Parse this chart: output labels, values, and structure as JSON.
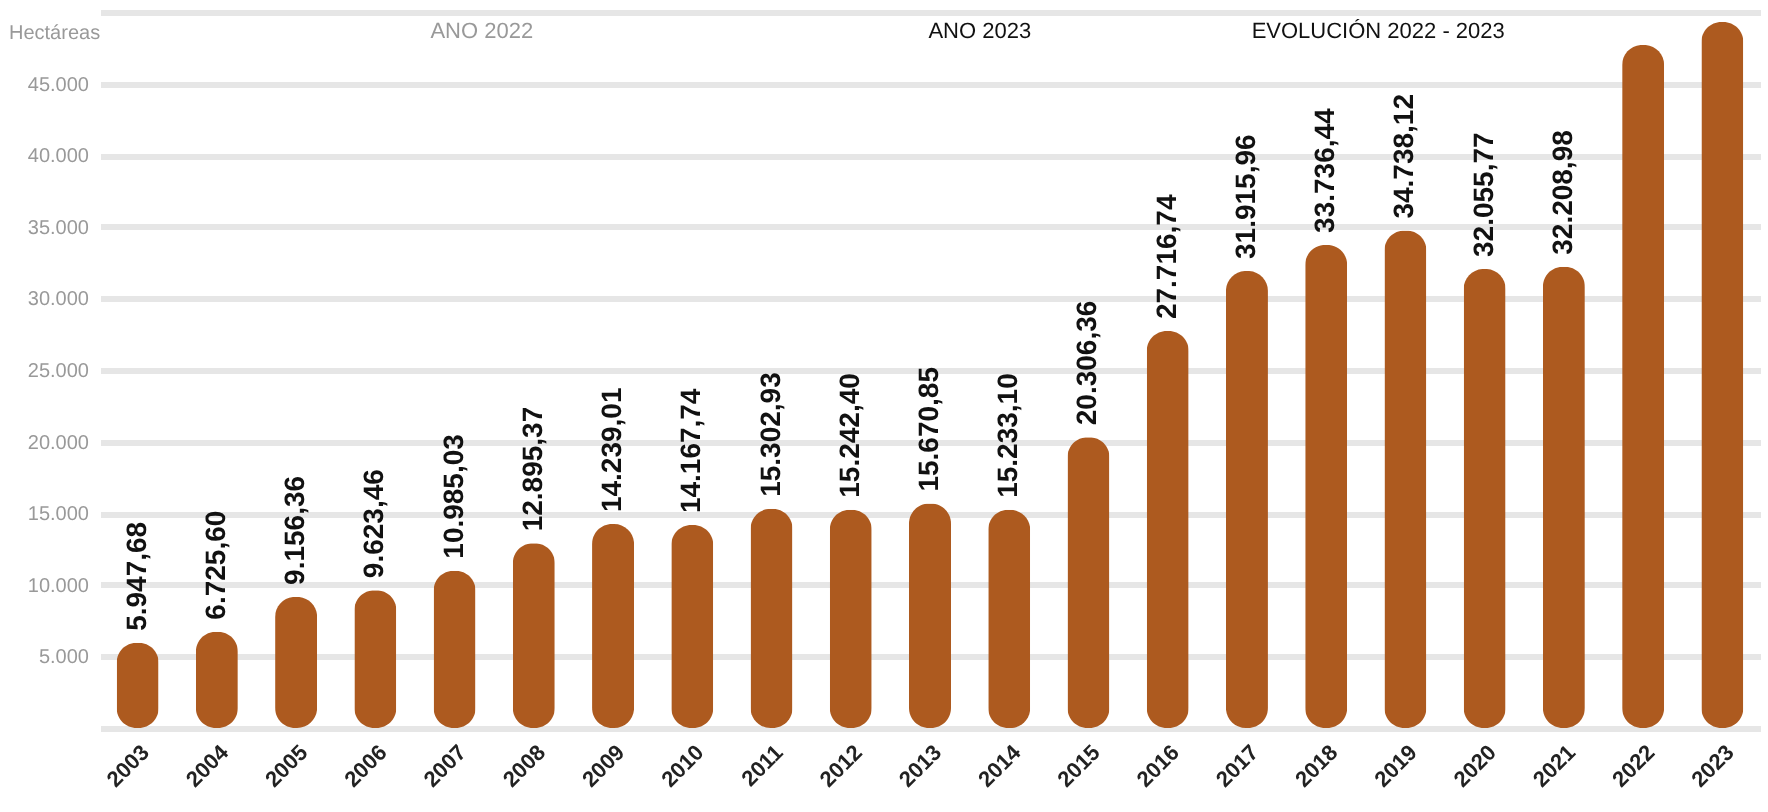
{
  "chart_data": {
    "type": "bar",
    "ylabel": "Hectáreas",
    "annotations": [
      "ANO 2022",
      "ANO 2023",
      "EVOLUCIÓN 2022 - 2023"
    ],
    "categories": [
      "2003",
      "2004",
      "2005",
      "2006",
      "2007",
      "2008",
      "2009",
      "2010",
      "2011",
      "2012",
      "2013",
      "2014",
      "2015",
      "2016",
      "2017",
      "2018",
      "2019",
      "2020",
      "2021",
      "2022",
      "2023"
    ],
    "values": [
      5947.68,
      6725.6,
      9156.36,
      9623.46,
      10985.03,
      12895.37,
      14239.01,
      14167.74,
      15302.93,
      15242.4,
      15670.85,
      15233.1,
      20306.36,
      27716.74,
      31915.96,
      33736.44,
      34738.12,
      32055.77,
      32208.98,
      47700,
      49300
    ],
    "value_labels": [
      "5.947,68",
      "6.725,60",
      "9.156,36",
      "9.623,46",
      "10.985,03",
      "12.895,37",
      "14.239,01",
      "14.167,74",
      "15.302,93",
      "15.242,40",
      "15.670,85",
      "15.233,10",
      "20.306,36",
      "27.716,74",
      "31.915,96",
      "33.736,44",
      "34.738,12",
      "32.055,77",
      "32.208,98",
      null,
      null
    ],
    "color": "#ad5a1f",
    "ylim": [
      0,
      50000
    ],
    "yticks": [
      {
        "value": 0,
        "label": null
      },
      {
        "value": 5000,
        "label": "5.000"
      },
      {
        "value": 10000,
        "label": "10.000"
      },
      {
        "value": 15000,
        "label": "15.000"
      },
      {
        "value": 20000,
        "label": "20.000"
      },
      {
        "value": 25000,
        "label": "25.000"
      },
      {
        "value": 30000,
        "label": "30.000"
      },
      {
        "value": 35000,
        "label": "35.000"
      },
      {
        "value": 40000,
        "label": "40.000"
      },
      {
        "value": 45000,
        "label": "45.000"
      },
      {
        "value": 50000,
        "label": null
      }
    ],
    "grid": "y"
  }
}
